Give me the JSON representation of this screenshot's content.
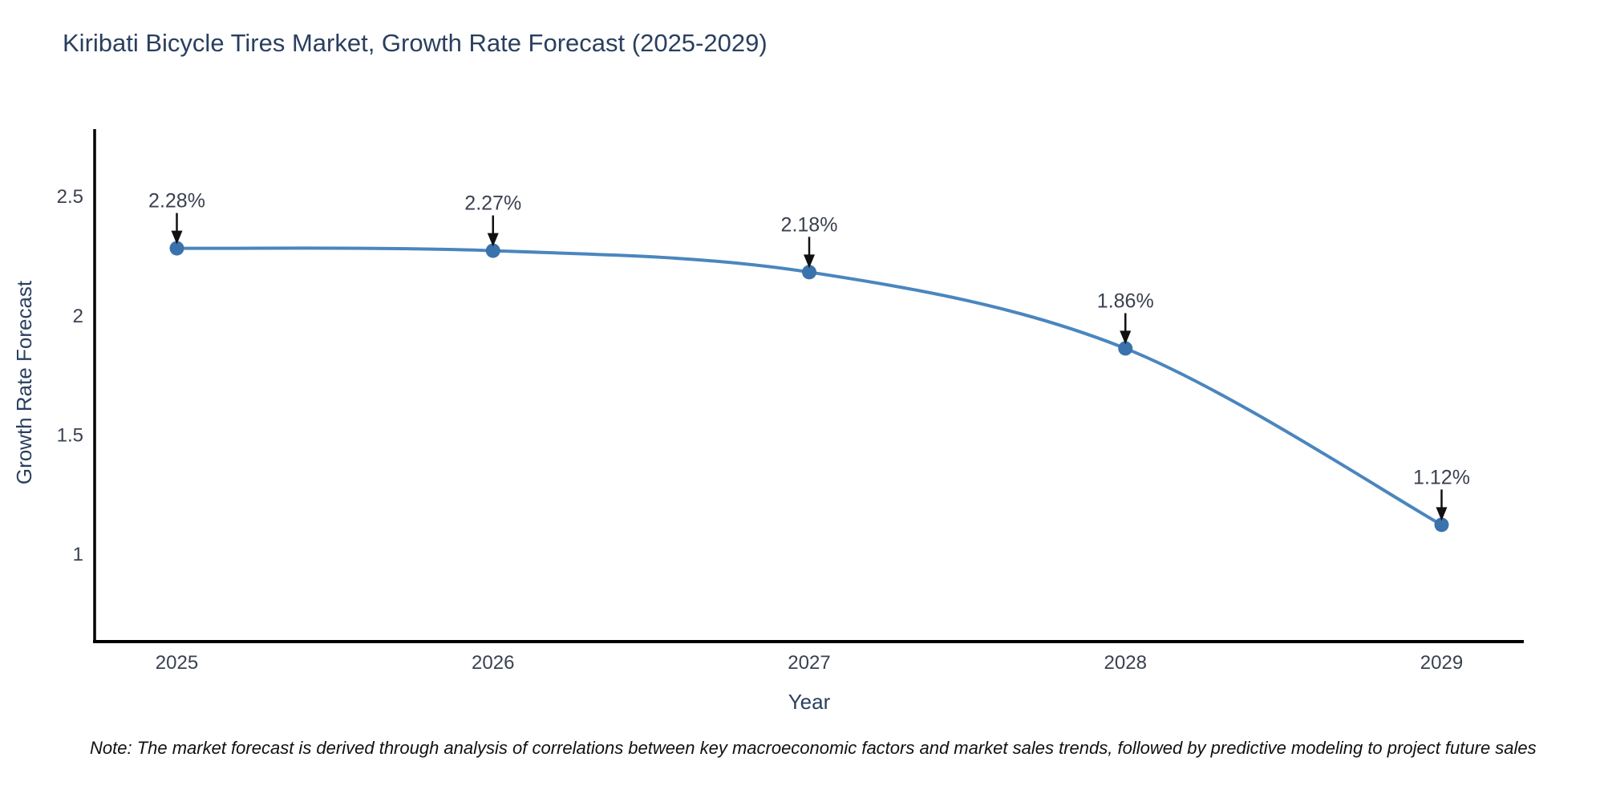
{
  "chart": {
    "title": "Kiribati Bicycle Tires Market, Growth Rate Forecast (2025-2029)",
    "note": "Note: The market forecast is derived through analysis of correlations between key macroeconomic factors and market sales trends, followed by predictive modeling to project future sales"
  },
  "chart_data": {
    "type": "line",
    "title": "Kiribati Bicycle Tires Market, Growth Rate Forecast (2025-2029)",
    "xlabel": "Year",
    "ylabel": "Growth Rate Forecast",
    "x": [
      2025,
      2026,
      2027,
      2028,
      2029
    ],
    "values": [
      2.28,
      2.27,
      2.18,
      1.86,
      1.12
    ],
    "point_labels": [
      "2.28%",
      "2.27%",
      "2.18%",
      "1.86%",
      "1.12%"
    ],
    "x_ticks": [
      "2025",
      "2026",
      "2027",
      "2028",
      "2029"
    ],
    "y_ticks": [
      1,
      1.5,
      2,
      2.5
    ],
    "y_tick_labels": [
      "1",
      "1.5",
      "2",
      "2.5"
    ],
    "xlim": [
      2024.74,
      2029.26
    ],
    "ylim": [
      0.63,
      2.78
    ],
    "line_shape": "spline",
    "grid": false,
    "legend": "none",
    "colors": {
      "line": "#4a86be",
      "marker": "#3a72ab",
      "arrow": "#111111",
      "axis": "#000000",
      "title_text": "#2a3f5f",
      "tick_text": "#3a4150",
      "annotation_text": "#3a4150",
      "note_text": "#111111",
      "background": "#ffffff"
    }
  }
}
